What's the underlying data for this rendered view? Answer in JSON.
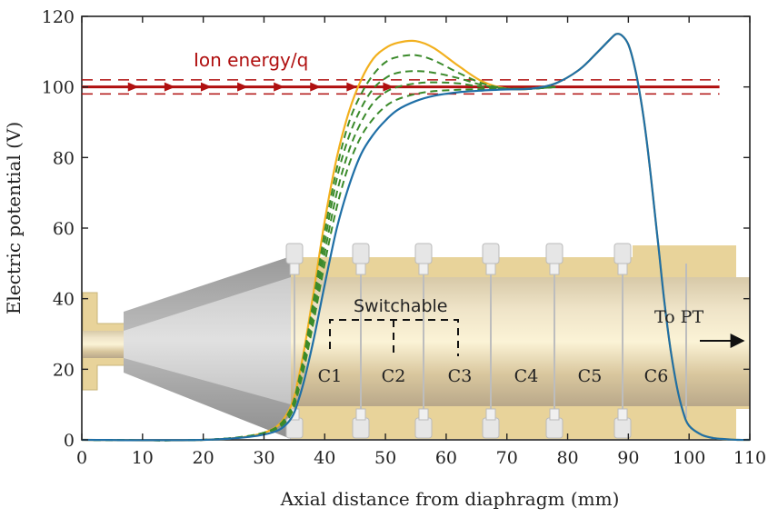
{
  "chart_data": {
    "type": "line",
    "title": "",
    "xlabel": "Axial distance from diaphragm (mm)",
    "ylabel": "Electric potential (V)",
    "xlim": [
      0,
      110
    ],
    "ylim": [
      0,
      120
    ],
    "xticks": [
      "0",
      "10",
      "20",
      "30",
      "40",
      "50",
      "60",
      "70",
      "80",
      "90",
      "100",
      "110"
    ],
    "yticks": [
      "0",
      "20",
      "40",
      "60",
      "80",
      "100",
      "120"
    ],
    "grid": false,
    "colors": {
      "ion": "#b01010",
      "yellow": "#f2b01e",
      "green": "#3b8a2b",
      "blue": "#1f6fa6",
      "electrode": "#e8d39a",
      "cone": "#a9a9a9"
    },
    "ion_energy": {
      "label": "Ion energy/q",
      "value": 100,
      "band": [
        98,
        102
      ],
      "x_range": [
        0,
        105
      ]
    },
    "series": [
      {
        "style": "solid-yellow",
        "x": [
          0,
          20,
          30,
          34,
          36,
          38,
          40,
          42,
          44,
          46,
          48,
          50,
          52,
          55,
          58,
          62,
          66,
          70,
          74,
          78,
          82,
          85,
          87,
          88,
          89,
          90,
          91,
          92,
          93,
          94,
          95,
          96,
          97,
          98,
          99,
          100,
          102,
          104,
          106,
          108,
          110
        ],
        "values": [
          0,
          0,
          2,
          8,
          20,
          40,
          62,
          80,
          93,
          102,
          108,
          111,
          112.5,
          113,
          111,
          106,
          101.5,
          99.5,
          99.5,
          101,
          105,
          110,
          113.5,
          115,
          114.5,
          112,
          106,
          97,
          85,
          70,
          54,
          38,
          25,
          15,
          8,
          4,
          1.5,
          0.5,
          0.2,
          0,
          0
        ]
      },
      {
        "style": "dashed-green",
        "x": [
          0,
          20,
          30,
          34,
          36,
          38,
          40,
          42,
          44,
          46,
          48,
          50,
          52,
          55,
          58,
          62,
          66,
          70,
          74,
          78
        ],
        "values": [
          0,
          0,
          2,
          7.5,
          19,
          38,
          59,
          77,
          90,
          98,
          103.5,
          107,
          108.5,
          109,
          107.5,
          104,
          101,
          99.5,
          99.5,
          100
        ]
      },
      {
        "style": "dashed-green",
        "x": [
          0,
          20,
          30,
          34,
          36,
          38,
          40,
          42,
          44,
          46,
          48,
          50,
          52,
          55,
          58,
          62,
          66,
          70,
          74,
          78
        ],
        "values": [
          0,
          0,
          2,
          7,
          18,
          36,
          56,
          74,
          86,
          94,
          99.5,
          102.5,
          104,
          104.5,
          104,
          102.5,
          100.5,
          99.5,
          99.5,
          100
        ]
      },
      {
        "style": "dashed-green",
        "x": [
          0,
          20,
          30,
          34,
          36,
          38,
          40,
          42,
          44,
          46,
          48,
          50,
          52,
          55,
          58,
          62,
          66,
          70,
          74,
          78
        ],
        "values": [
          0,
          0,
          2,
          6.5,
          17,
          34,
          53,
          70,
          82,
          90,
          95.5,
          98.5,
          100,
          101,
          101.3,
          101,
          100,
          99.5,
          99.5,
          100
        ]
      },
      {
        "style": "dashed-green",
        "x": [
          0,
          20,
          30,
          34,
          36,
          38,
          40,
          42,
          44,
          46,
          48,
          50,
          52,
          55,
          58,
          62,
          66,
          70,
          74,
          78
        ],
        "values": [
          0,
          0,
          2,
          6,
          16,
          32,
          50,
          66,
          78,
          86,
          91,
          94.5,
          96.5,
          98,
          98.8,
          99.2,
          99.4,
          99.5,
          99.5,
          100
        ]
      },
      {
        "style": "solid-blue",
        "x": [
          0,
          20,
          30,
          34,
          36,
          38,
          40,
          42,
          44,
          46,
          48,
          50,
          52,
          55,
          58,
          62,
          66,
          70,
          74,
          78,
          82,
          85,
          87,
          88,
          89,
          90,
          91,
          92,
          93,
          94,
          95,
          96,
          97,
          98,
          99,
          100,
          102,
          104,
          106,
          108,
          110
        ],
        "values": [
          0,
          0,
          1.5,
          5,
          13,
          27,
          44,
          60,
          72,
          81,
          86.5,
          90.5,
          93.5,
          96,
          97.5,
          98.5,
          99,
          99.3,
          99.5,
          101,
          105,
          110,
          113.5,
          115,
          114.5,
          112,
          106,
          97,
          85,
          70,
          54,
          38,
          25,
          15,
          8,
          4,
          1.5,
          0.5,
          0.2,
          0,
          0
        ]
      }
    ],
    "annotations": {
      "switchable": "Switchable",
      "to_pt": "To PT",
      "cells": [
        "C1",
        "C2",
        "C3",
        "C4",
        "C5",
        "C6"
      ]
    }
  }
}
